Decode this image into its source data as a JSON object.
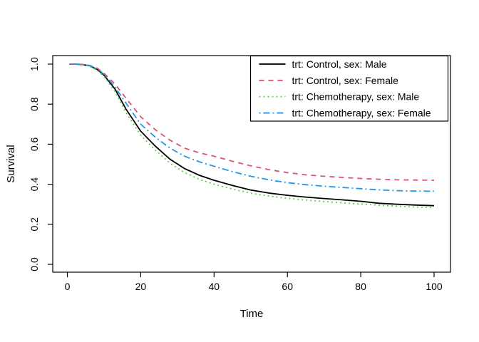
{
  "chart_data": {
    "type": "line",
    "title": "",
    "xlabel": "Time",
    "ylabel": "Survival",
    "xlim": [
      0,
      100
    ],
    "ylim": [
      0,
      1
    ],
    "x_ticks": [
      "0",
      "20",
      "40",
      "60",
      "80",
      "100"
    ],
    "x_tick_values": [
      0,
      20,
      40,
      60,
      80,
      100
    ],
    "y_ticks": [
      "0.0",
      "0.2",
      "0.4",
      "0.6",
      "0.8",
      "1.0"
    ],
    "y_tick_values": [
      0,
      0.2,
      0.4,
      0.6,
      0.8,
      1.0
    ],
    "grid": false,
    "legend_position": "topright",
    "background_color": "#ffffff",
    "axis_color": "#000000",
    "x": [
      0.5,
      2,
      4,
      6,
      8,
      10,
      13,
      16,
      20,
      24,
      28,
      32,
      36,
      40,
      45,
      50,
      55,
      60,
      65,
      70,
      75,
      80,
      85,
      90,
      95,
      100
    ],
    "series": [
      {
        "name": "trt: Control, sex: Male",
        "color": "#000000",
        "linetype": "solid",
        "values": [
          1.0,
          1.0,
          0.998,
          0.992,
          0.975,
          0.945,
          0.875,
          0.775,
          0.665,
          0.59,
          0.525,
          0.478,
          0.445,
          0.42,
          0.394,
          0.371,
          0.356,
          0.345,
          0.336,
          0.329,
          0.322,
          0.315,
          0.305,
          0.3,
          0.296,
          0.293
        ]
      },
      {
        "name": "trt: Control, sex: Female",
        "color": "#DF536B",
        "linetype": "dashed",
        "values": [
          1.0,
          1.0,
          0.999,
          0.994,
          0.981,
          0.955,
          0.9,
          0.83,
          0.737,
          0.672,
          0.62,
          0.58,
          0.557,
          0.54,
          0.515,
          0.492,
          0.473,
          0.458,
          0.447,
          0.44,
          0.434,
          0.429,
          0.425,
          0.422,
          0.421,
          0.42
        ]
      },
      {
        "name": "trt: Chemotherapy, sex: Male",
        "color": "#61D04F",
        "linetype": "dotted",
        "values": [
          1.0,
          1.0,
          0.997,
          0.99,
          0.971,
          0.938,
          0.862,
          0.758,
          0.645,
          0.57,
          0.505,
          0.458,
          0.425,
          0.4,
          0.376,
          0.355,
          0.341,
          0.33,
          0.321,
          0.314,
          0.307,
          0.301,
          0.295,
          0.29,
          0.286,
          0.283
        ]
      },
      {
        "name": "trt: Chemotherapy, sex: Female",
        "color": "#2297E6",
        "linetype": "dotdash",
        "values": [
          1.0,
          1.0,
          0.998,
          0.993,
          0.978,
          0.95,
          0.885,
          0.805,
          0.7,
          0.635,
          0.58,
          0.54,
          0.512,
          0.49,
          0.463,
          0.44,
          0.422,
          0.408,
          0.398,
          0.39,
          0.384,
          0.378,
          0.372,
          0.368,
          0.366,
          0.365
        ]
      }
    ]
  }
}
